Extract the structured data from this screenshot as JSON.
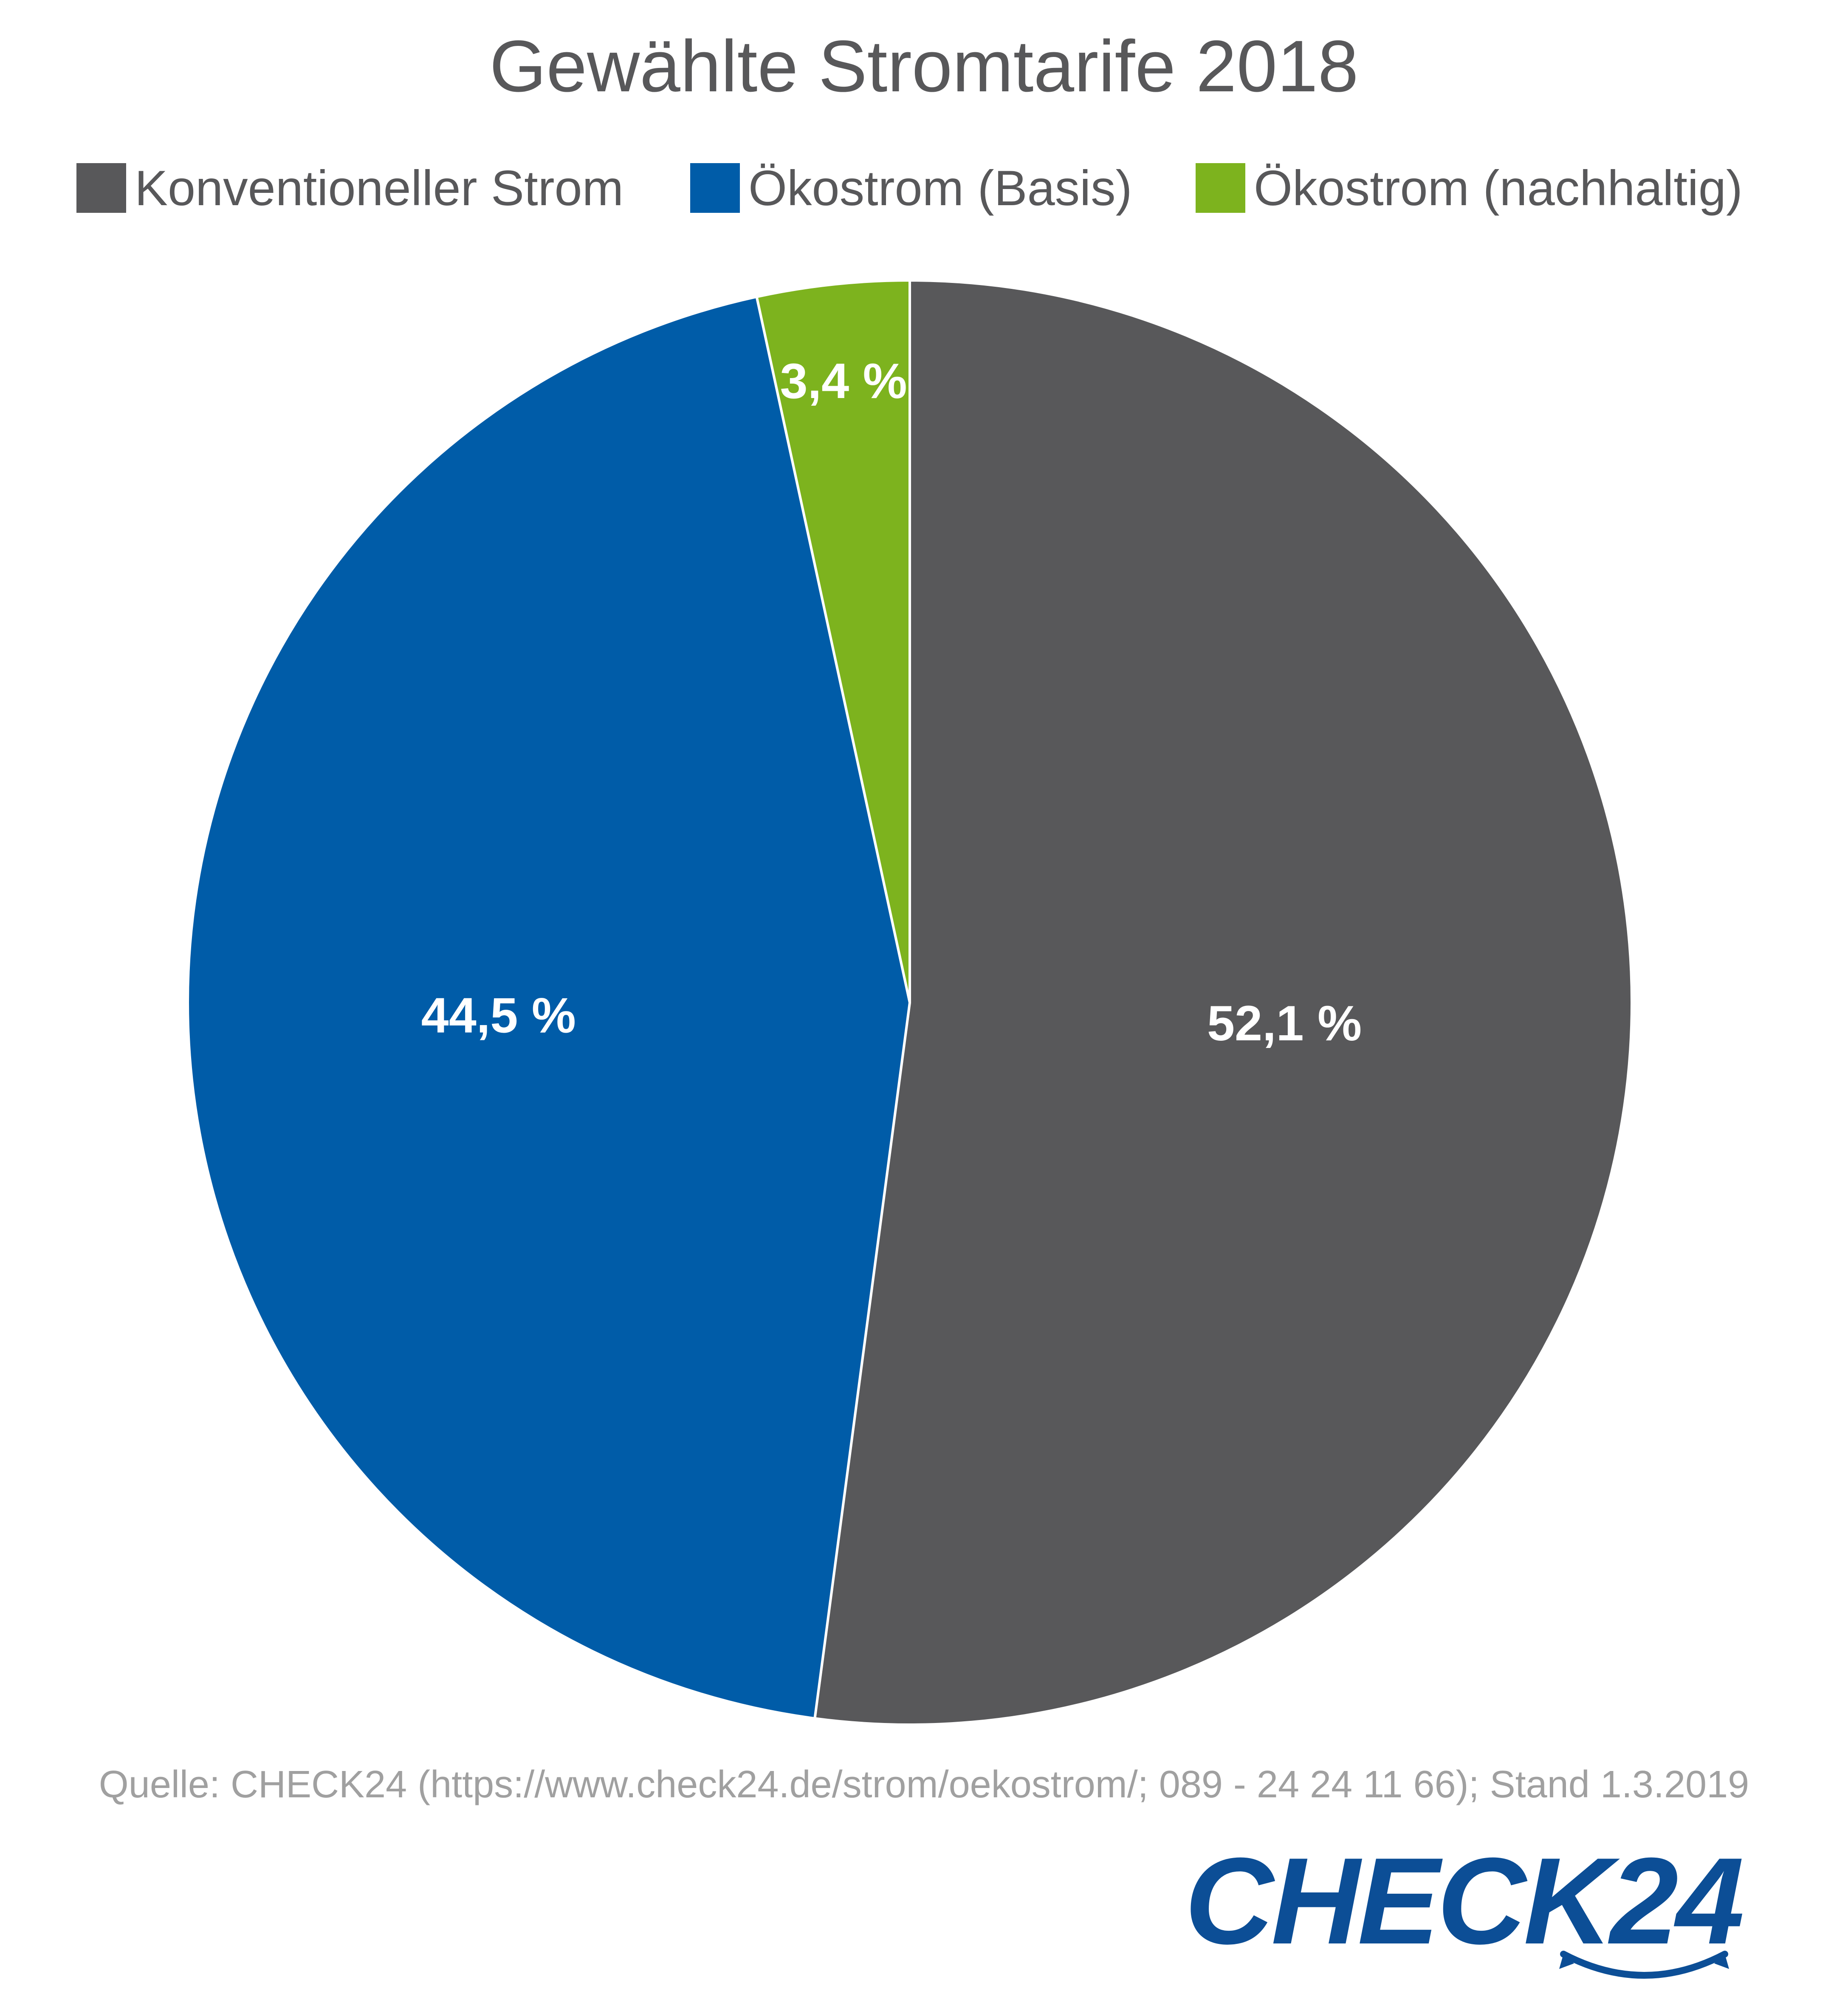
{
  "chart_data": {
    "type": "pie",
    "title": "Gewählte Stromtarife 2018",
    "legend_position": "top",
    "slices": [
      {
        "name": "Konventioneller Strom",
        "value": 52.1,
        "label": "52,1 %",
        "color": "#58585a"
      },
      {
        "name": "Ökostrom (Basis)",
        "value": 44.5,
        "label": "44,5 %",
        "color": "#005ca8"
      },
      {
        "name": "Ökostrom (nachhaltig)",
        "value": 3.4,
        "label": "3,4 %",
        "color": "#7db31e"
      }
    ],
    "start_angle_deg": 0,
    "direction": "clockwise"
  },
  "source": "Quelle: CHECK24 (https://www.check24.de/strom/oekostrom/; 089 - 24 24 11 66); Stand 1.3.2019",
  "logo": {
    "text": "CHECK24",
    "color": "#0c4e96"
  }
}
